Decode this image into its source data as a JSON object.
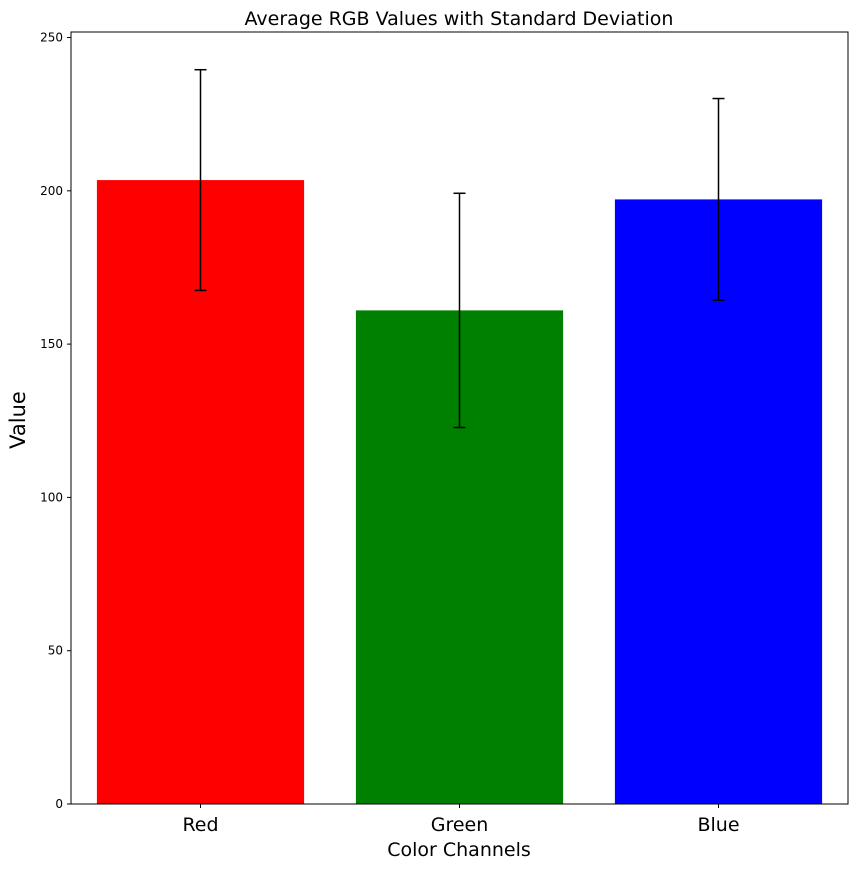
{
  "chart_data": {
    "type": "bar",
    "title": "Average RGB Values with Standard Deviation",
    "xlabel": "Color Channels",
    "ylabel": "Value",
    "categories": [
      "Red",
      "Green",
      "Blue"
    ],
    "values": [
      203.5,
      161.0,
      197.2
    ],
    "errors": [
      36.0,
      38.2,
      32.9
    ],
    "colors": [
      "#ff0000",
      "#008000",
      "#0000ff"
    ],
    "ylim": [
      0,
      251.8
    ],
    "yticks": [
      0,
      50,
      100,
      150,
      200,
      250
    ],
    "grid": false,
    "legend": "none"
  }
}
